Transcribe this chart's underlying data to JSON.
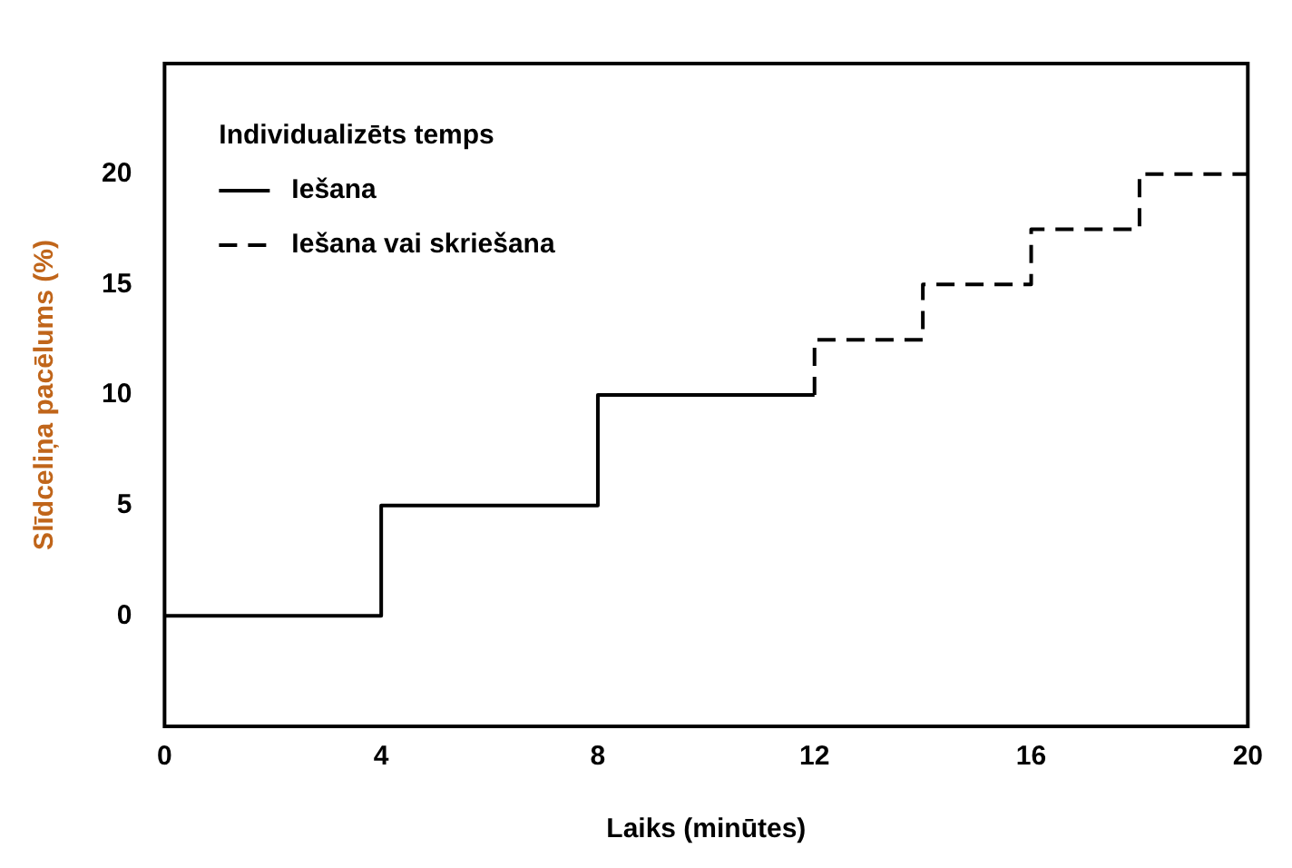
{
  "chart_data": {
    "type": "step",
    "xlabel": "Laiks (minūtes)",
    "ylabel": "Slīdceliņa pacēlums (%)",
    "legend_title": "Individualizēts temps",
    "legend": "top left",
    "grid": false,
    "xlim": [
      0,
      20
    ],
    "xticks": [
      0,
      4,
      8,
      12,
      16,
      20
    ],
    "ylim": [
      -5,
      25
    ],
    "yticks": [
      0,
      5,
      10,
      15,
      20
    ],
    "series": [
      {
        "name": "Iešana",
        "color": "#000000",
        "line_style": "solid",
        "x": [
          0,
          4,
          8,
          12
        ],
        "values": [
          0,
          5,
          10,
          10
        ]
      },
      {
        "name": "Iešana vai skriešana",
        "color": "#000000",
        "line_style": "dashed",
        "x": [
          12,
          12,
          14,
          16,
          18,
          20
        ],
        "values": [
          10,
          12.5,
          15,
          17.5,
          20,
          20
        ]
      }
    ]
  }
}
